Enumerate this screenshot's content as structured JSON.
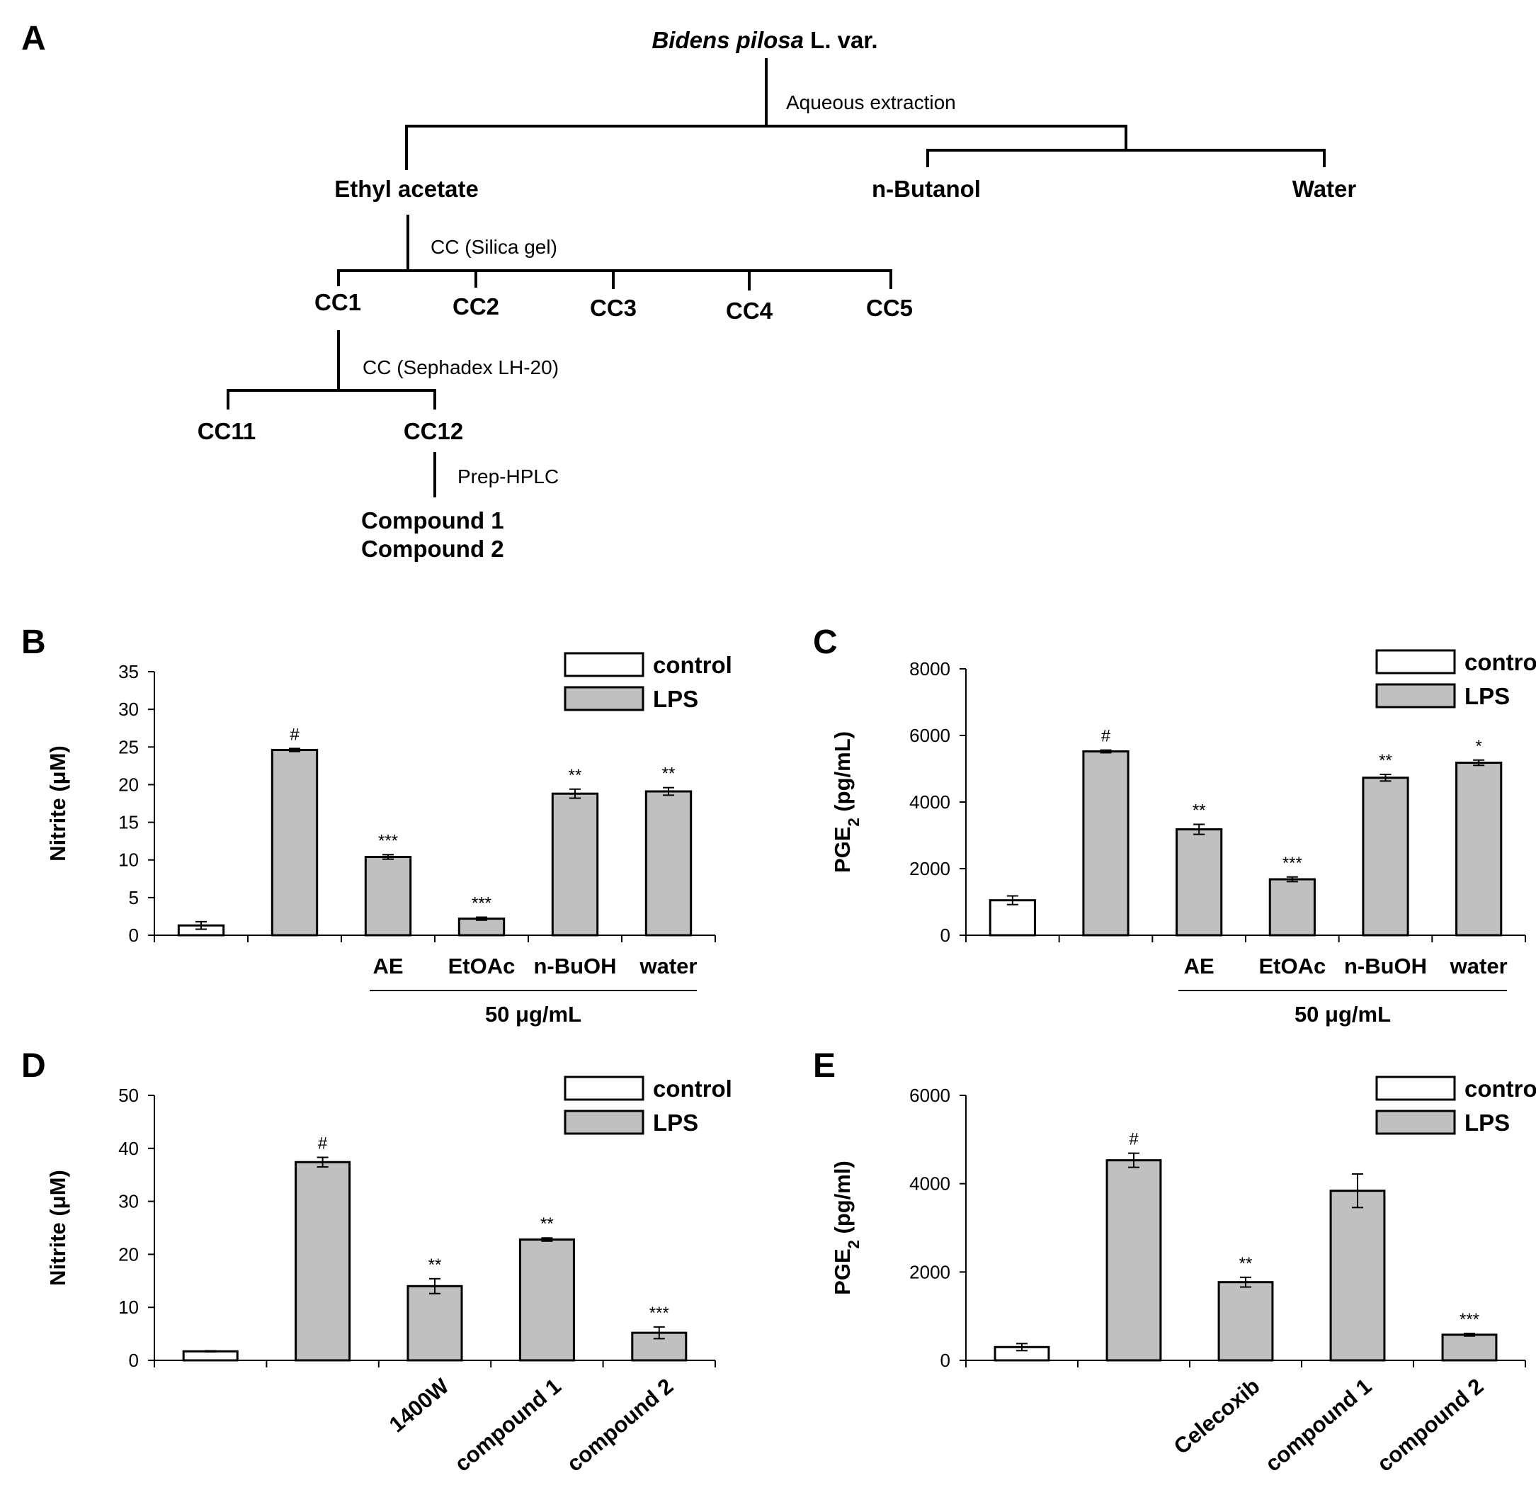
{
  "panel_labels": {
    "a": "A",
    "b": "B",
    "c": "C",
    "d": "D",
    "e": "E"
  },
  "tree": {
    "root_italic": "Bidens pilosa",
    "root_suffix": " L. var.",
    "step1": "Aqueous extraction",
    "fractions": [
      "Ethyl acetate",
      "n-Butanol",
      "Water"
    ],
    "step2": "CC (Silica gel)",
    "cc_fractions": [
      "CC1",
      "CC2",
      "CC3",
      "CC4",
      "CC5"
    ],
    "step3": "CC (Sephadex LH-20)",
    "sub_fractions": [
      "CC11",
      "CC12"
    ],
    "step4": "Prep-HPLC",
    "compounds": [
      "Compound 1",
      "Compound 2"
    ]
  },
  "chart_data": [
    {
      "panel": "B",
      "type": "bar",
      "ylabel": "Nitrite (μM)",
      "ylim": [
        0,
        35
      ],
      "yticks": [
        "0",
        "5",
        "10",
        "15",
        "20",
        "25",
        "30",
        "35"
      ],
      "categories": [
        "",
        "",
        "AE",
        "EtOAc",
        "n-BuOH",
        "water"
      ],
      "values": [
        1.3,
        24.6,
        10.4,
        2.2,
        18.8,
        19.1
      ],
      "errors": [
        0.5,
        0.2,
        0.3,
        0.2,
        0.6,
        0.5
      ],
      "colors": [
        "#ffffff",
        "#c0c0c0",
        "#c0c0c0",
        "#c0c0c0",
        "#c0c0c0",
        "#c0c0c0"
      ],
      "significance": [
        "",
        "#",
        "***",
        "***",
        "**",
        "**"
      ],
      "group_label": "50 μg/mL",
      "legend": [
        {
          "label": "control",
          "color": "#ffffff"
        },
        {
          "label": "LPS",
          "color": "#c0c0c0"
        }
      ]
    },
    {
      "panel": "C",
      "type": "bar",
      "ylabel": "PGE",
      "ylabel_sub": "2",
      "ylabel_suffix": " (pg/mL)",
      "ylim": [
        0,
        8000
      ],
      "yticks": [
        "0",
        "2000",
        "4000",
        "6000",
        "8000"
      ],
      "categories": [
        "",
        "",
        "AE",
        "EtOAc",
        "n-BuOH",
        "water"
      ],
      "values": [
        1050,
        5520,
        3180,
        1680,
        4730,
        5180
      ],
      "errors": [
        130,
        40,
        150,
        70,
        100,
        80
      ],
      "colors": [
        "#ffffff",
        "#c0c0c0",
        "#c0c0c0",
        "#c0c0c0",
        "#c0c0c0",
        "#c0c0c0"
      ],
      "significance": [
        "",
        "#",
        "**",
        "***",
        "**",
        "*"
      ],
      "group_label": "50 μg/mL",
      "legend": [
        {
          "label": "control",
          "color": "#ffffff"
        },
        {
          "label": "LPS",
          "color": "#c0c0c0"
        }
      ]
    },
    {
      "panel": "D",
      "type": "bar",
      "ylabel": "Nitrite (μM)",
      "ylim": [
        0,
        50
      ],
      "yticks": [
        "0",
        "10",
        "20",
        "30",
        "40",
        "50"
      ],
      "categories": [
        "",
        "",
        "1400W",
        "compound 1",
        "compound 2"
      ],
      "values": [
        1.7,
        37.4,
        14.0,
        22.8,
        5.2
      ],
      "errors": [
        0.1,
        0.9,
        1.4,
        0.3,
        1.1
      ],
      "colors": [
        "#ffffff",
        "#c0c0c0",
        "#c0c0c0",
        "#c0c0c0",
        "#c0c0c0"
      ],
      "significance": [
        "",
        "#",
        "**",
        "**",
        "***"
      ],
      "legend": [
        {
          "label": "control",
          "color": "#ffffff"
        },
        {
          "label": "LPS",
          "color": "#c0c0c0"
        }
      ]
    },
    {
      "panel": "E",
      "type": "bar",
      "ylabel": "PGE",
      "ylabel_sub": "2",
      "ylabel_suffix": " (pg/ml)",
      "ylim": [
        0,
        6000
      ],
      "yticks": [
        "0",
        "2000",
        "4000",
        "6000"
      ],
      "categories": [
        "",
        "",
        "Celecoxib",
        "compound 1",
        "compound 2"
      ],
      "values": [
        300,
        4530,
        1770,
        3840,
        580
      ],
      "errors": [
        80,
        160,
        110,
        380,
        30
      ],
      "colors": [
        "#ffffff",
        "#c0c0c0",
        "#c0c0c0",
        "#c0c0c0",
        "#c0c0c0"
      ],
      "significance": [
        "",
        "#",
        "**",
        "",
        "***"
      ],
      "legend": [
        {
          "label": "control",
          "color": "#ffffff"
        },
        {
          "label": "LPS",
          "color": "#c0c0c0"
        }
      ]
    }
  ]
}
